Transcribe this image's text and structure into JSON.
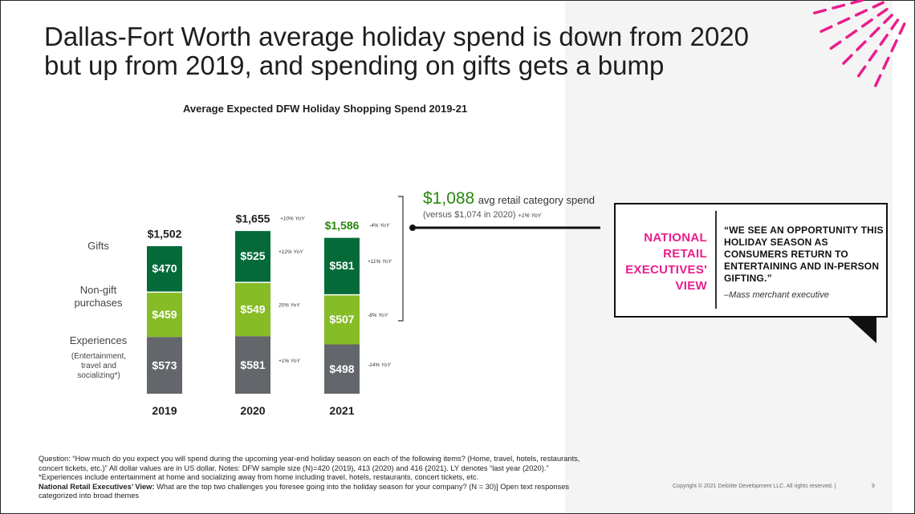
{
  "title_lines": [
    "Dallas-Fort Worth average holiday spend is down from 2020",
    "but up from 2019, and spending on gifts gets a bump"
  ],
  "chart_data": {
    "type": "bar",
    "stacked": true,
    "title": "Average Expected DFW Holiday Shopping Spend 2019-21",
    "categories": [
      "2019",
      "2020",
      "2021"
    ],
    "series": [
      {
        "name": "Experiences",
        "values": [
          573,
          581,
          498
        ],
        "labels": [
          "$573",
          "$581",
          "$498"
        ],
        "color": "#63666a",
        "yoy": [
          "",
          "+1% YoY",
          "-14% YoY"
        ]
      },
      {
        "name": "Non-gift purchases",
        "values": [
          459,
          549,
          507
        ],
        "labels": [
          "$459",
          "$549",
          "$507"
        ],
        "color": "#86bc25",
        "yoy": [
          "",
          "20% YoY",
          "-8% YoY"
        ]
      },
      {
        "name": "Gifts",
        "values": [
          470,
          525,
          581
        ],
        "labels": [
          "$470",
          "$525",
          "$581"
        ],
        "color": "#046a38",
        "yoy": [
          "",
          "+12% YoY",
          "+11% YoY"
        ]
      }
    ],
    "totals": [
      1502,
      1655,
      1586
    ],
    "total_labels": [
      "$1,502",
      "$1,655",
      "$1,586"
    ],
    "total_yoy": [
      "",
      "+10% YoY",
      "-4% YoY"
    ],
    "total_colors": [
      "#1e1e1e",
      "#1e1e1e",
      "#26890d"
    ]
  },
  "category_labels": {
    "gifts": "Gifts",
    "nongift": "Non-gift\npurchases",
    "experiences": "Experiences",
    "experiences_note": "(Entertainment,\ntravel and\nsocializing*)"
  },
  "retail": {
    "value": "$1,088",
    "label": "avg retail category spend",
    "sub": "(versus $1,074 in 2020)",
    "yoy": "+1% YoY"
  },
  "quote": {
    "heading_lines": [
      "NATIONAL",
      "RETAIL",
      "EXECUTIVES'",
      "VIEW"
    ],
    "text": "“WE SEE AN OPPORTUNITY THIS HOLIDAY SEASON AS CONSUMERS RETURN TO ENTERTAINING AND IN-PERSON GIFTING.”",
    "author": "–Mass merchant executive"
  },
  "footnote": {
    "question": "Question: “How much do you expect you will spend during the upcoming year-end holiday season on each of the following items? (Home, travel, hotels, restaurants, concert tickets, etc.)” All dollar values are in US dollar. Notes: DFW sample size (N)=420 (2019), 413 (2020) and 416 (2021). LY denotes “last year (2020).”",
    "experiences_note": "*Experiences include entertainment at home and socializing away from home including travel, hotels, restaurants, concert tickets, etc.",
    "nre_label": "National Retail Executives’ View:",
    "nre_text": " What are the top two challenges you foresee going into the holiday season for your company? (N = 30)] Open text responses categorized into broad themes"
  },
  "copyright": "Copyright © 2021 Deloitte Development LLC. All rights reserved.  |",
  "page_number": "9",
  "colors": {
    "accent_pink": "#e91e8c",
    "gifts_green": "#046a38",
    "nongift_green": "#86bc25",
    "experiences_gray": "#63666a",
    "highlight_green": "#26890d"
  }
}
